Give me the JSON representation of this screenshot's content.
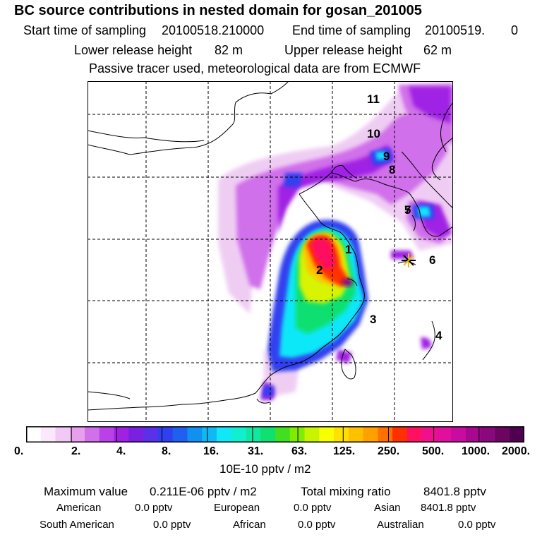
{
  "header": {
    "title": "BC  source contributions in nested domain for gosan_201005",
    "start_label": "Start time of sampling",
    "start_value": "20100518.210000",
    "end_label": "End time of sampling",
    "end_value": "20100519.",
    "end_value2": "0",
    "lower_label": "Lower release height",
    "lower_value": "82 m",
    "upper_label": "Upper release height",
    "upper_value": "62 m",
    "note": "Passive tracer used, meteorological data are from ECMWF"
  },
  "map": {
    "region_labels": [
      "1",
      "2",
      "3",
      "4",
      "5",
      "6",
      "7",
      "8",
      "9",
      "10",
      "11"
    ],
    "receptor_marker": "star-icon"
  },
  "colorbar": {
    "colors": [
      "#ffffff",
      "#fbe8fb",
      "#f2c8f4",
      "#e8a0ee",
      "#d070ea",
      "#bb40e8",
      "#a020e4",
      "#7a20e0",
      "#5a30e8",
      "#3040f0",
      "#2060f0",
      "#1090f0",
      "#10b8f4",
      "#10e8f8",
      "#10f0d0",
      "#10e8a0",
      "#10e070",
      "#40e020",
      "#80ec00",
      "#c8f400",
      "#f8ff00",
      "#ffe000",
      "#ffc000",
      "#ffa000",
      "#ff7000",
      "#ff3000",
      "#ff1060",
      "#f0108c",
      "#e0109c",
      "#c80ca0",
      "#a80890",
      "#8a087c",
      "#6c0462",
      "#500050"
    ],
    "tick_labels": [
      "0.",
      "2.",
      "4.",
      "8.",
      "16.",
      "31.",
      "63.",
      "125.",
      "250.",
      "500.",
      "1000.",
      "2000."
    ],
    "unit": "10E-10 pptv / m2"
  },
  "stats": {
    "max_label": "Maximum value",
    "max_value": "0.211E-06 pptv / m2",
    "total_label": "Total mixing ratio",
    "total_value": "8401.8 pptv",
    "regions": [
      {
        "name": "American",
        "value": "0.0 pptv"
      },
      {
        "name": "European",
        "value": "0.0 pptv"
      },
      {
        "name": "Asian",
        "value": "8401.8 pptv"
      },
      {
        "name": "South American",
        "value": "0.0 pptv"
      },
      {
        "name": "African",
        "value": "0.0 pptv"
      },
      {
        "name": "Australian",
        "value": "0.0 pptv"
      }
    ]
  }
}
